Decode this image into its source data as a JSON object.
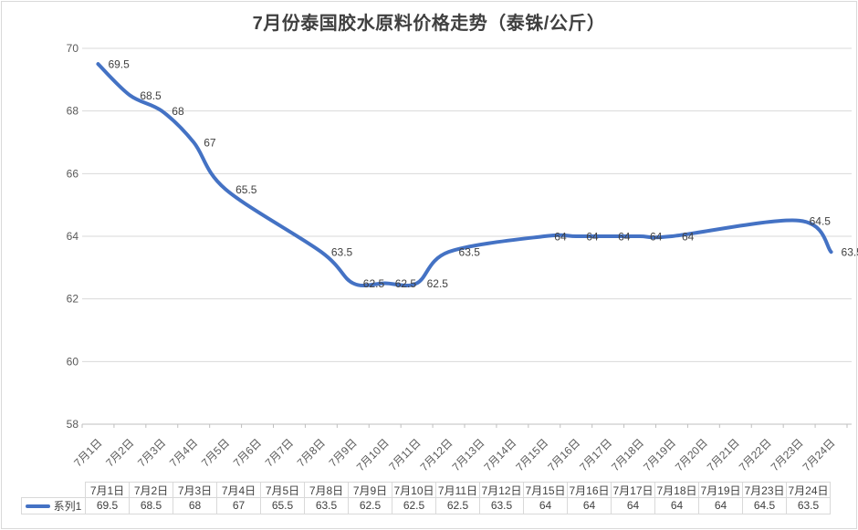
{
  "chart_data": {
    "type": "line",
    "title": "7月份泰国胶水原料价格走势（泰铢/公斤）",
    "xlabel": "",
    "ylabel": "",
    "ylim": [
      58,
      70
    ],
    "y_ticks": [
      58,
      60,
      62,
      64,
      66,
      68,
      70
    ],
    "grid": "horizontal-only",
    "smooth_line": true,
    "data_labels": true,
    "legend_position": "bottom-table",
    "x_categories": [
      "7月1日",
      "7月2日",
      "7月3日",
      "7月4日",
      "7月5日",
      "7月6日",
      "7月7日",
      "7月8日",
      "7月9日",
      "7月10日",
      "7月11日",
      "7月12日",
      "7月13日",
      "7月14日",
      "7月15日",
      "7月16日",
      "7月17日",
      "7月18日",
      "7月19日",
      "7月20日",
      "7月21日",
      "7月22日",
      "7月23日",
      "7月24日"
    ],
    "series": [
      {
        "name": "系列1",
        "data": [
          {
            "x": "7月1日",
            "y": 69.5
          },
          {
            "x": "7月2日",
            "y": 68.5
          },
          {
            "x": "7月3日",
            "y": 68
          },
          {
            "x": "7月4日",
            "y": 67
          },
          {
            "x": "7月5日",
            "y": 65.5
          },
          {
            "x": "7月8日",
            "y": 63.5
          },
          {
            "x": "7月9日",
            "y": 62.5
          },
          {
            "x": "7月10日",
            "y": 62.5
          },
          {
            "x": "7月11日",
            "y": 62.5
          },
          {
            "x": "7月12日",
            "y": 63.5
          },
          {
            "x": "7月15日",
            "y": 64
          },
          {
            "x": "7月16日",
            "y": 64
          },
          {
            "x": "7月17日",
            "y": 64
          },
          {
            "x": "7月18日",
            "y": 64
          },
          {
            "x": "7月19日",
            "y": 64
          },
          {
            "x": "7月23日",
            "y": 64.5
          },
          {
            "x": "7月24日",
            "y": 63.5
          }
        ]
      }
    ],
    "data_table": {
      "legend_label": "系列1",
      "columns": [
        "7月1日",
        "7月2日",
        "7月3日",
        "7月4日",
        "7月5日",
        "7月8日",
        "7月9日",
        "7月10日",
        "7月11日",
        "7月12日",
        "7月15日",
        "7月16日",
        "7月17日",
        "7月18日",
        "7月19日",
        "7月23日",
        "7月24日"
      ],
      "values": [
        69.5,
        68.5,
        68,
        67,
        65.5,
        63.5,
        62.5,
        62.5,
        62.5,
        63.5,
        64,
        64,
        64,
        64,
        64,
        64.5,
        63.5
      ]
    }
  },
  "colors": {
    "line": "#4472C4",
    "gridline": "#D9D9D9",
    "axis_line": "#BFBFBF",
    "tick_label": "#595959",
    "data_label": "#404040",
    "title": "#404040",
    "table_border": "#D9D9D9",
    "table_text": "#404040",
    "background": "#FFFFFF"
  }
}
